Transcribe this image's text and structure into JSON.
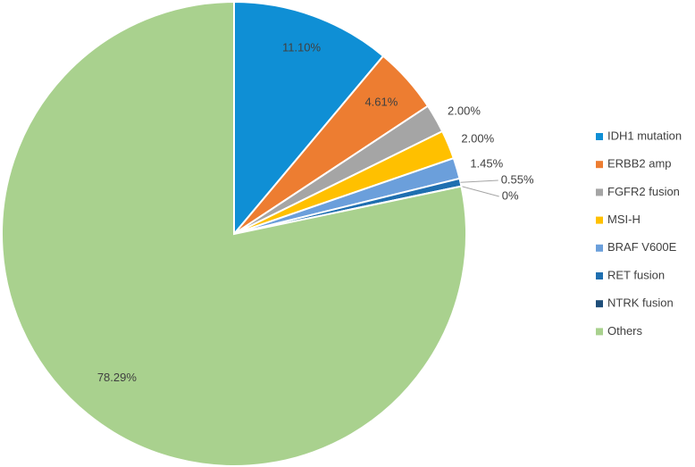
{
  "chart_data": {
    "type": "pie",
    "categories": [
      "IDH1 mutation",
      "ERBB2 amp",
      "FGFR2 fusion",
      "MSI-H",
      "BRAF V600E",
      "RET fusion",
      "NTRK fusion",
      "Others"
    ],
    "values": [
      11.1,
      4.61,
      2.0,
      2.0,
      1.45,
      0.55,
      0,
      78.29
    ],
    "value_labels": [
      "11.10%",
      "4.61%",
      "2.00%",
      "2.00%",
      "1.45%",
      "0.55%",
      "0%",
      "78.29%"
    ],
    "colors": [
      "#0f8fd5",
      "#ed7d31",
      "#a5a5a5",
      "#ffc000",
      "#6b9fdb",
      "#1f6fb0",
      "#1f4e79",
      "#a9d18e"
    ],
    "legend": "right"
  }
}
